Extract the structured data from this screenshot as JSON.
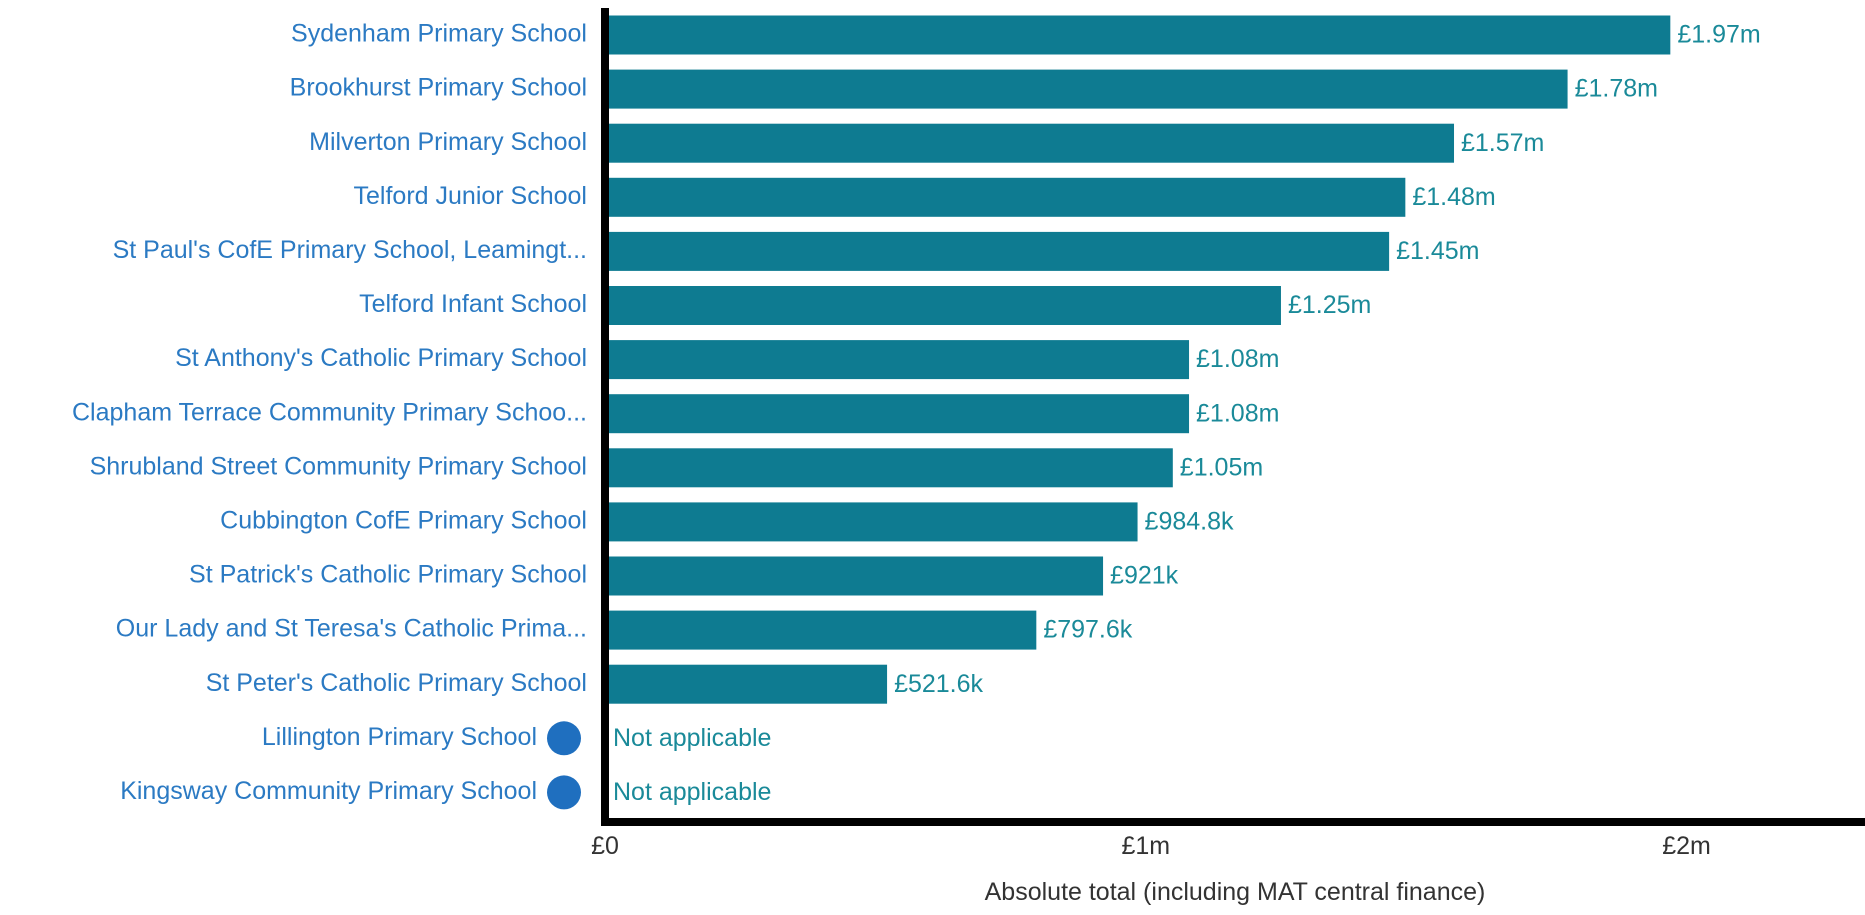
{
  "chart_data": {
    "type": "bar",
    "orientation": "horizontal",
    "xlabel": "Absolute total (including MAT central finance)",
    "xlim": [
      0,
      2330000
    ],
    "xticks": [
      {
        "value": 0,
        "label": "£0"
      },
      {
        "value": 1000000,
        "label": "£1m"
      },
      {
        "value": 2000000,
        "label": "£2m"
      }
    ],
    "bar_color": "#0e7b91",
    "marker_color": "#1f6fbf",
    "categories": [
      "Sydenham Primary School",
      "Brookhurst Primary School",
      "Milverton Primary School",
      "Telford Junior School",
      "St Paul's CofE Primary School, Leamingt...",
      "Telford Infant School",
      "St Anthony's Catholic Primary School",
      "Clapham Terrace Community Primary Schoo...",
      "Shrubland Street Community Primary School",
      "Cubbington CofE Primary School",
      "St Patrick's Catholic Primary School",
      "Our Lady and St Teresa's Catholic Prima...",
      "St Peter's Catholic Primary School",
      "Lillington Primary School",
      "Kingsway Community Primary School"
    ],
    "values": [
      1970000,
      1780000,
      1570000,
      1480000,
      1450000,
      1250000,
      1080000,
      1080000,
      1050000,
      984800,
      921000,
      797600,
      521600,
      null,
      null
    ],
    "value_labels": [
      "£1.97m",
      "£1.78m",
      "£1.57m",
      "£1.48m",
      "£1.45m",
      "£1.25m",
      "£1.08m",
      "£1.08m",
      "£1.05m",
      "£984.8k",
      "£921k",
      "£797.6k",
      "£521.6k",
      "Not applicable",
      "Not applicable"
    ],
    "has_marker": [
      false,
      false,
      false,
      false,
      false,
      false,
      false,
      false,
      false,
      false,
      false,
      false,
      false,
      true,
      true
    ]
  }
}
